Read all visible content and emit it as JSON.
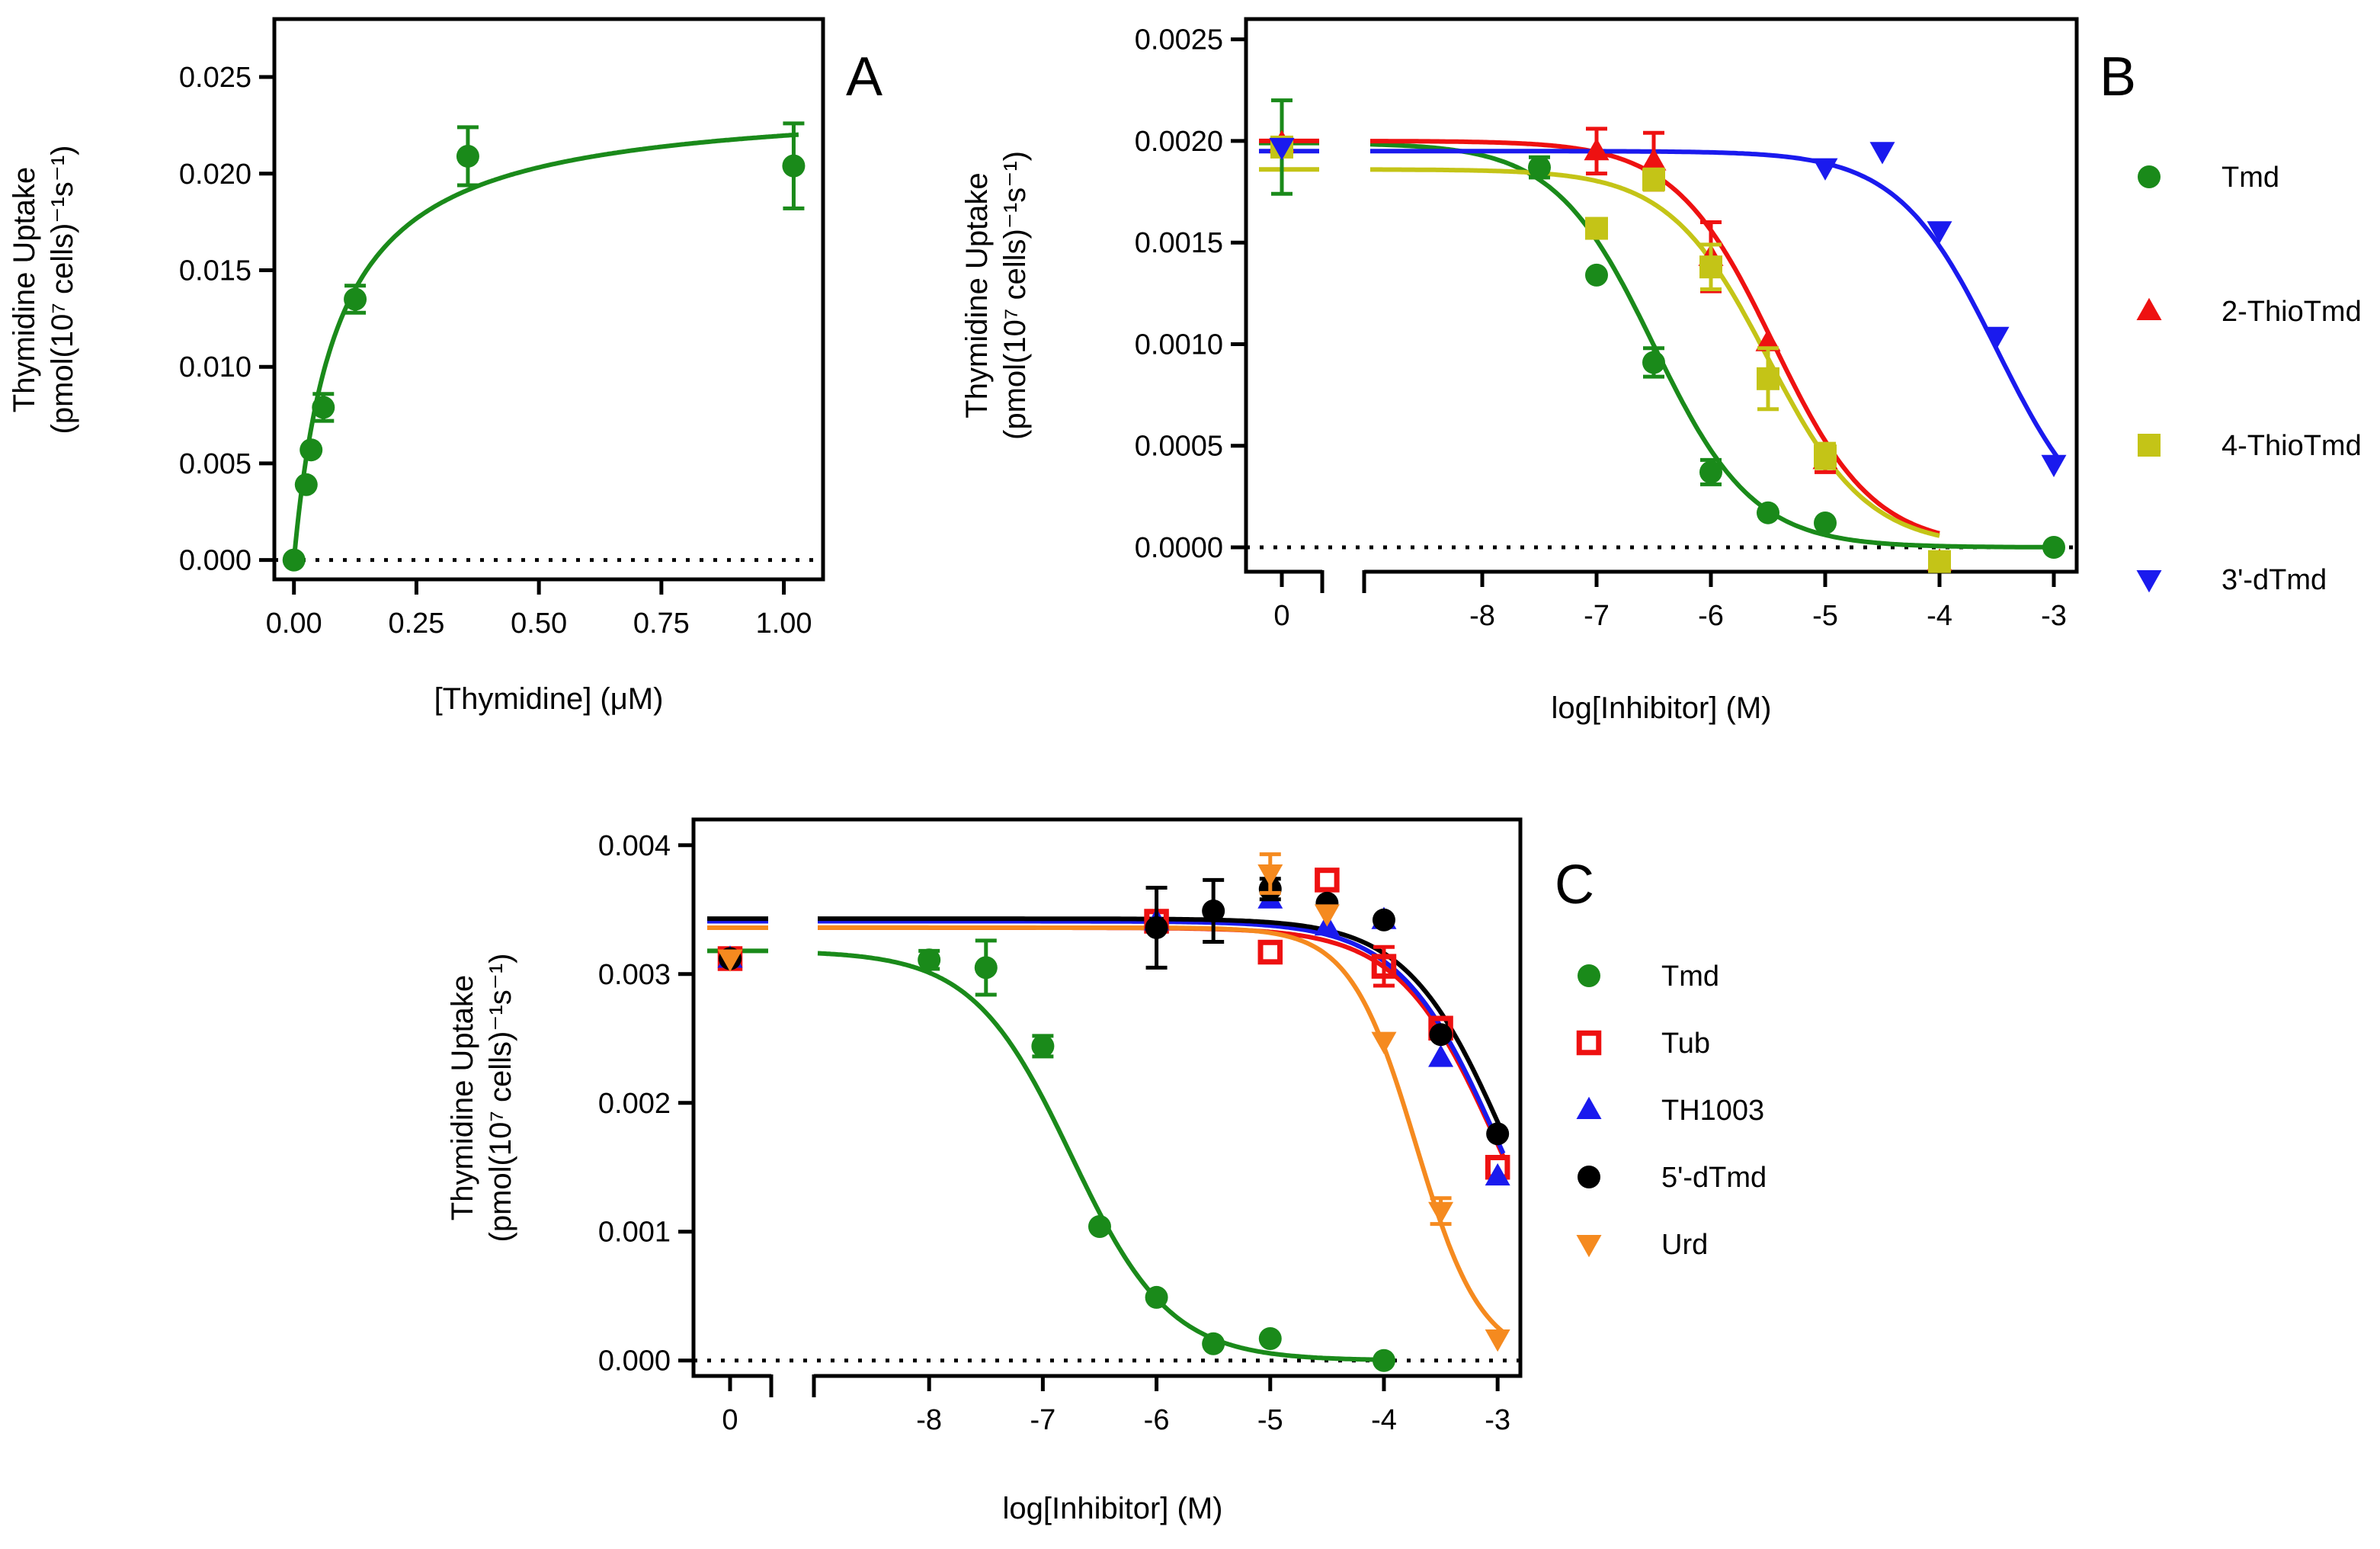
{
  "chart_data": [
    {
      "panel": "A",
      "type": "scatter",
      "letter": "A",
      "xlabel": "[Thymidine] (μM)",
      "ylabel": "Thymidine Uptake",
      "ylabel_units": "(pmol(10⁷ cells)⁻¹s⁻¹)",
      "xlim": [
        -0.04,
        1.08
      ],
      "ylim": [
        -0.001,
        0.028
      ],
      "xticks": [
        0,
        0.25,
        0.5,
        0.75,
        1.0
      ],
      "xtick_labels": [
        "0.00",
        "0.25",
        "0.50",
        "0.75",
        "1.00"
      ],
      "yticks": [
        0,
        0.005,
        0.01,
        0.015,
        0.02,
        0.025
      ],
      "ytick_labels": [
        "0.000",
        "0.005",
        "0.010",
        "0.015",
        "0.020",
        "0.025"
      ],
      "fit": {
        "model": "michaelis-menten",
        "vmax": 0.0239,
        "km": 0.088
      },
      "series": [
        {
          "name": "Thymidine",
          "color": "#1a8a1a",
          "marker": "circle",
          "filled": true,
          "x": [
            0.0,
            0.025,
            0.035,
            0.06,
            0.125,
            0.355,
            1.02
          ],
          "y": [
            0.0,
            0.0039,
            0.0057,
            0.0079,
            0.0135,
            0.0209,
            0.0204
          ],
          "err": [
            0,
            0,
            0,
            0.0007,
            0.0007,
            0.0015,
            0.0022
          ]
        }
      ]
    },
    {
      "panel": "B",
      "type": "scatter",
      "letter": "B",
      "xlabel": "log[Inhibitor] (M)",
      "ylabel": "Thymidine Uptake",
      "ylabel_units": "(pmol(10⁷ cells)⁻¹s⁻¹)",
      "zero_label": "0",
      "ylim": [
        -0.00012,
        0.0026
      ],
      "log_range": [
        -9.0,
        -2.8
      ],
      "xticks": [
        -8,
        -7,
        -6,
        -5,
        -4,
        -3
      ],
      "xtick_labels": [
        "-8",
        "-7",
        "-6",
        "-5",
        "-4",
        "-3"
      ],
      "yticks": [
        0,
        0.0005,
        0.001,
        0.0015,
        0.002,
        0.0025
      ],
      "ytick_labels": [
        "0.0000",
        "0.0005",
        "0.0010",
        "0.0015",
        "0.0020",
        "0.0025"
      ],
      "series": [
        {
          "name": "Tmd",
          "color": "#1a8a1a",
          "marker": "circle",
          "fit": {
            "top": 0.00199,
            "bottom": 0.0,
            "ic50_log": -6.5,
            "hill": 1.0
          },
          "zero_point": {
            "y": 0.00197,
            "err": 0.00023
          },
          "x": [
            -7.5,
            -7.0,
            -6.5,
            -6.0,
            -5.5,
            -5.0,
            -3.0
          ],
          "y": [
            0.00187,
            0.00134,
            0.00091,
            0.00037,
            0.00017,
            0.00012,
            0.0
          ],
          "err": [
            5e-05,
            0,
            7e-05,
            6e-05,
            0,
            0,
            0
          ]
        },
        {
          "name": "2-ThioTmd",
          "color": "#ee1111",
          "marker": "triangle-up",
          "fit": {
            "top": 0.002,
            "bottom": 0.0,
            "ic50_log": -5.45,
            "hill": 1.0
          },
          "zero_point": {
            "y": 0.00199,
            "err": 0
          },
          "x": [
            -7.0,
            -6.5,
            -6.0,
            -5.5,
            -5.0,
            -4.0
          ],
          "y": [
            0.00195,
            0.0019,
            0.00143,
            0.00101,
            0.00043,
            -7e-05
          ],
          "err": [
            0.00011,
            0.00014,
            0.00017,
            0,
            6e-05,
            0
          ]
        },
        {
          "name": "4-ThioTmd",
          "color": "#c4c417",
          "marker": "square",
          "fit": {
            "top": 0.00186,
            "bottom": 0.0,
            "ic50_log": -5.5,
            "hill": 1.0
          },
          "zero_point": {
            "y": 0.00197,
            "err": 0
          },
          "x": [
            -7.0,
            -6.5,
            -6.0,
            -5.5,
            -5.0,
            -4.0
          ],
          "y": [
            0.00157,
            0.00181,
            0.00138,
            0.00083,
            0.00045,
            -7e-05
          ],
          "err": [
            0,
            5e-05,
            0.00011,
            0.00015,
            6e-05,
            0
          ]
        },
        {
          "name": "3'-dTmd",
          "color": "#1a1aee",
          "marker": "triangle-down",
          "fit": {
            "top": 0.00195,
            "bottom": 0.0,
            "ic50_log": -3.5,
            "hill": 1.0
          },
          "zero_point": {
            "y": 0.00197,
            "err": 0
          },
          "x": [
            -5.0,
            -4.5,
            -4.0,
            -3.5,
            -3.0
          ],
          "y": [
            0.00187,
            0.00195,
            0.00156,
            0.00104,
            0.00041
          ],
          "err": [
            0,
            0,
            0,
            0,
            0
          ]
        }
      ]
    },
    {
      "panel": "C",
      "type": "scatter",
      "letter": "C",
      "xlabel": "log[Inhibitor] (M)",
      "ylabel": "Thymidine Uptake",
      "ylabel_units": "(pmol(10⁷ cells)⁻¹s⁻¹)",
      "zero_label": "0",
      "ylim": [
        -0.00012,
        0.0042
      ],
      "log_range": [
        -9.0,
        -2.8
      ],
      "xticks": [
        -8,
        -7,
        -6,
        -5,
        -4,
        -3
      ],
      "xtick_labels": [
        "-8",
        "-7",
        "-6",
        "-5",
        "-4",
        "-3"
      ],
      "yticks": [
        0,
        0.001,
        0.002,
        0.003,
        0.004
      ],
      "ytick_labels": [
        "0.000",
        "0.001",
        "0.002",
        "0.003",
        "0.004"
      ],
      "series": [
        {
          "name": "Tmd",
          "color": "#1a8a1a",
          "marker": "circle",
          "filled": true,
          "fit": {
            "top": 0.00318,
            "bottom": 0.0,
            "ic50_log": -6.75,
            "hill": 1.0
          },
          "zero_point": {
            "y": 0.00312,
            "err": 7e-05
          },
          "x": [
            -8.0,
            -7.5,
            -7.0,
            -6.5,
            -6.0,
            -5.5,
            -5.0,
            -4.0
          ],
          "y": [
            0.00311,
            0.00305,
            0.00244,
            0.00104,
            0.00049,
            0.00013,
            0.00017,
            0.0
          ],
          "err": [
            7e-05,
            0.00021,
            8e-05,
            0,
            0,
            0,
            0,
            0
          ]
        },
        {
          "name": "Tub",
          "color": "#ee1111",
          "marker": "square",
          "filled": false,
          "fit": {
            "top": 0.00336,
            "bottom": 0.0,
            "ic50_log": -3.0,
            "hill": 1.0
          },
          "zero_point": {
            "y": 0.00312,
            "err": 0
          },
          "x": [
            -6.0,
            -5.0,
            -4.5,
            -4.0,
            -3.5,
            -3.0
          ],
          "y": [
            0.00341,
            0.00317,
            0.00373,
            0.00306,
            0.00258,
            0.0015
          ],
          "err": [
            0,
            0,
            0,
            0.00015,
            0,
            0
          ]
        },
        {
          "name": "TH1003",
          "color": "#1a1aee",
          "marker": "triangle-up",
          "filled": true,
          "fit": {
            "top": 0.00341,
            "bottom": 0.0,
            "ic50_log": -3.0,
            "hill": 1.0
          },
          "zero_point": {
            "y": 0.00312,
            "err": 0
          },
          "x": [
            -6.0,
            -5.0,
            -4.5,
            -4.0,
            -3.5,
            -3.0
          ],
          "y": [
            0.00341,
            0.00358,
            0.00337,
            0.00342,
            0.00235,
            0.00143
          ],
          "err": [
            0,
            0,
            0,
            0,
            0,
            0
          ]
        },
        {
          "name": "5'-dTmd",
          "color": "#000000",
          "marker": "circle",
          "filled": true,
          "fit": {
            "top": 0.00343,
            "bottom": 0.0,
            "ic50_log": -2.93,
            "hill": 1.0
          },
          "zero_point": {
            "y": 0.00312,
            "err": 0
          },
          "x": [
            -6.0,
            -5.5,
            -5.0,
            -4.5,
            -4.0,
            -3.5,
            -3.0
          ],
          "y": [
            0.00336,
            0.00349,
            0.00366,
            0.00355,
            0.00342,
            0.00253,
            0.00176
          ],
          "err": [
            0.00031,
            0.00024,
            8e-05,
            0,
            0,
            0,
            0
          ]
        },
        {
          "name": "Urd",
          "color": "#f58a1f",
          "marker": "triangle-down",
          "filled": true,
          "fit": {
            "top": 0.00336,
            "bottom": 0.0,
            "ic50_log": -3.72,
            "hill": 1.5
          },
          "zero_point": {
            "y": 0.00312,
            "err": 0
          },
          "x": [
            -5.0,
            -4.5,
            -4.0,
            -3.5,
            -3.0
          ],
          "y": [
            0.00378,
            0.00347,
            0.00248,
            0.00116,
            0.00017
          ],
          "err": [
            0.00015,
            0,
            0,
            0.0001,
            0
          ]
        }
      ]
    }
  ]
}
